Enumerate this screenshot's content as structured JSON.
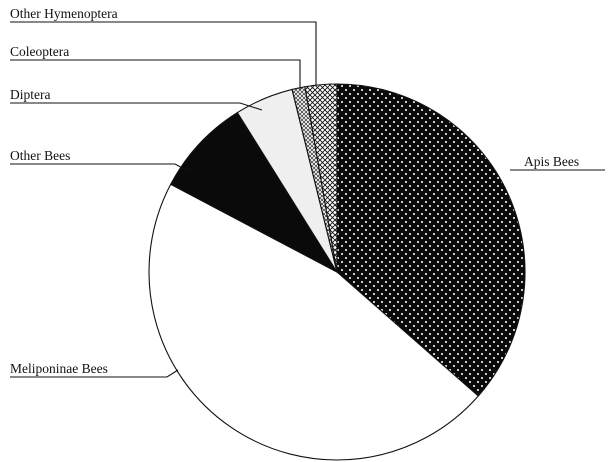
{
  "chart_data": {
    "type": "pie",
    "title": "",
    "start": "12 o'clock",
    "direction": "clockwise",
    "categories": [
      "Apis Bees",
      "Meliponinae Bees",
      "Other Bees",
      "Diptera",
      "Coleoptera",
      "Other Hymenoptera"
    ],
    "values": [
      36.1,
      45.8,
      8.3,
      5.0,
      1.1,
      2.7
    ],
    "value_unit": "percent",
    "value_labels": "none",
    "fills": [
      "dense dots (white dots on black)",
      "white",
      "black",
      "very light gray",
      "dark crosshatch",
      "light crosshatch"
    ],
    "legend": "none (slices labeled with leader lines)",
    "grid": false
  }
}
